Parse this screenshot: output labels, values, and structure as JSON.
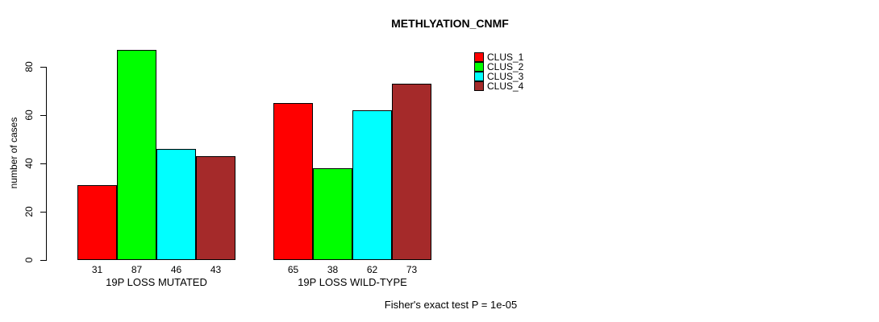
{
  "title": "METHLYATION_CNMF",
  "footer": "Fisher's exact test P = 1e-05",
  "chart_data": {
    "type": "bar",
    "title": "METHLYATION_CNMF",
    "xlabel": "",
    "ylabel": "number of cases",
    "ylim": [
      0,
      80
    ],
    "yticks": [
      0,
      20,
      40,
      60,
      80
    ],
    "grid": false,
    "legend_position": "top-right",
    "bar_value_labels_shown": true,
    "categories": [
      "19P LOSS MUTATED",
      "19P LOSS WILD-TYPE"
    ],
    "series": [
      {
        "name": "CLUS_1",
        "color": "#ff0000",
        "values": [
          31,
          65
        ]
      },
      {
        "name": "CLUS_2",
        "color": "#00ff00",
        "values": [
          87,
          38
        ]
      },
      {
        "name": "CLUS_3",
        "color": "#00ffff",
        "values": [
          46,
          62
        ]
      },
      {
        "name": "CLUS_4",
        "color": "#a52a2a",
        "values": [
          43,
          73
        ]
      }
    ],
    "annotation": "Fisher's exact test P = 1e-05"
  }
}
